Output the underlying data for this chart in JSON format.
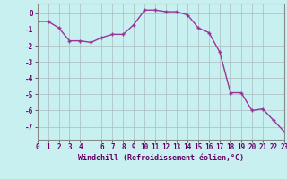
{
  "x": [
    0,
    1,
    2,
    3,
    4,
    5,
    6,
    7,
    8,
    9,
    10,
    11,
    12,
    13,
    14,
    15,
    16,
    17,
    18,
    19,
    20,
    21,
    22,
    23
  ],
  "y": [
    -0.5,
    -0.5,
    -0.9,
    -1.7,
    -1.7,
    -1.8,
    -1.5,
    -1.3,
    -1.3,
    -0.7,
    0.2,
    0.2,
    0.1,
    0.1,
    -0.1,
    -0.9,
    -1.2,
    -2.4,
    -4.9,
    -4.9,
    -6.0,
    -5.9,
    -6.6,
    -7.3
  ],
  "line_color": "#993399",
  "marker": "+",
  "bg_color": "#c8f0f0",
  "grid_color": "#aabbbb",
  "xlabel": "Windchill (Refroidissement éolien,°C)",
  "ylabel_ticks": [
    0,
    -1,
    -2,
    -3,
    -4,
    -5,
    -6,
    -7
  ],
  "xtick_labels": [
    "0",
    "1",
    "2",
    "3",
    "4",
    "",
    "6",
    "7",
    "8",
    "9",
    "10",
    "11",
    "12",
    "13",
    "14",
    "15",
    "16",
    "17",
    "18",
    "19",
    "20",
    "21",
    "22",
    "23"
  ],
  "xticks": [
    0,
    1,
    2,
    3,
    4,
    5,
    6,
    7,
    8,
    9,
    10,
    11,
    12,
    13,
    14,
    15,
    16,
    17,
    18,
    19,
    20,
    21,
    22,
    23
  ],
  "xlim": [
    0,
    23
  ],
  "ylim": [
    -7.8,
    0.6
  ],
  "xlabel_fontsize": 6.0,
  "tick_fontsize": 5.5,
  "line_width": 1.0,
  "marker_size": 3.5
}
